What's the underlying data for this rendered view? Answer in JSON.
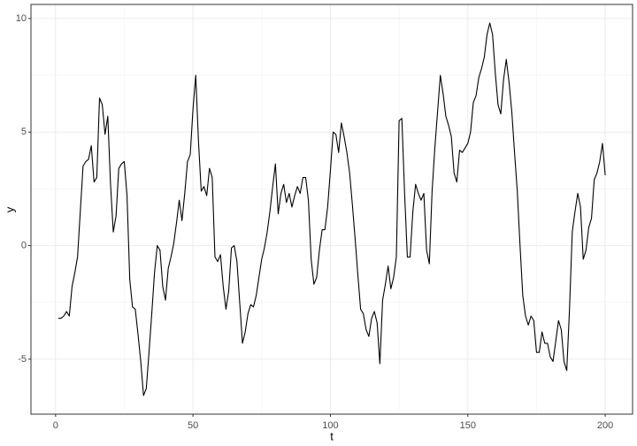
{
  "chart_data": {
    "type": "line",
    "x_label": "t",
    "y_label": "y",
    "x": [
      1,
      2,
      3,
      4,
      5,
      6,
      7,
      8,
      9,
      10,
      11,
      12,
      13,
      14,
      15,
      16,
      17,
      18,
      19,
      20,
      21,
      22,
      23,
      24,
      25,
      26,
      27,
      28,
      29,
      30,
      31,
      32,
      33,
      34,
      35,
      36,
      37,
      38,
      39,
      40,
      41,
      42,
      43,
      44,
      45,
      46,
      47,
      48,
      49,
      50,
      51,
      52,
      53,
      54,
      55,
      56,
      57,
      58,
      59,
      60,
      61,
      62,
      63,
      64,
      65,
      66,
      67,
      68,
      69,
      70,
      71,
      72,
      73,
      74,
      75,
      76,
      77,
      78,
      79,
      80,
      81,
      82,
      83,
      84,
      85,
      86,
      87,
      88,
      89,
      90,
      91,
      92,
      93,
      94,
      95,
      96,
      97,
      98,
      99,
      100,
      101,
      102,
      103,
      104,
      105,
      106,
      107,
      108,
      109,
      110,
      111,
      112,
      113,
      114,
      115,
      116,
      117,
      118,
      119,
      120,
      121,
      122,
      123,
      124,
      125,
      126,
      127,
      128,
      129,
      130,
      131,
      132,
      133,
      134,
      135,
      136,
      137,
      138,
      139,
      140,
      141,
      142,
      143,
      144,
      145,
      146,
      147,
      148,
      149,
      150,
      151,
      152,
      153,
      154,
      155,
      156,
      157,
      158,
      159,
      160,
      161,
      162,
      163,
      164,
      165,
      166,
      167,
      168,
      169,
      170,
      171,
      172,
      173,
      174,
      175,
      176,
      177,
      178,
      179,
      180,
      181,
      182,
      183,
      184,
      185,
      186,
      187,
      188,
      189,
      190,
      191,
      192,
      193,
      194,
      195,
      196,
      197,
      198,
      199,
      200
    ],
    "series": [
      {
        "color": "#000000",
        "values": [
          -3.2,
          -3.2,
          -3.1,
          -2.9,
          -3.1,
          -1.8,
          -1.2,
          -0.5,
          1.5,
          3.5,
          3.7,
          3.8,
          4.4,
          2.8,
          3.0,
          6.5,
          6.2,
          4.9,
          5.7,
          2.7,
          0.6,
          1.3,
          3.4,
          3.6,
          3.7,
          2.2,
          -1.5,
          -2.7,
          -2.8,
          -3.9,
          -5.1,
          -6.6,
          -6.3,
          -4.7,
          -3.0,
          -1.2,
          0.0,
          -0.2,
          -1.8,
          -2.4,
          -1.0,
          -0.5,
          0.1,
          1.0,
          2.0,
          1.1,
          2.3,
          3.7,
          4.0,
          6.0,
          7.5,
          4.6,
          2.4,
          2.6,
          2.2,
          3.4,
          3.0,
          -0.5,
          -0.7,
          -0.4,
          -1.8,
          -2.8,
          -2.0,
          -0.1,
          0.0,
          -0.7,
          -2.5,
          -4.3,
          -3.8,
          -3.0,
          -2.6,
          -2.7,
          -2.2,
          -1.4,
          -0.6,
          -0.1,
          0.6,
          1.5,
          2.6,
          3.6,
          1.4,
          2.3,
          2.7,
          1.9,
          2.3,
          1.7,
          2.2,
          2.6,
          2.3,
          3.0,
          3.0,
          2.0,
          -0.6,
          -1.7,
          -1.4,
          -0.2,
          0.7,
          0.7,
          1.7,
          3.3,
          5.0,
          4.9,
          4.1,
          5.4,
          4.8,
          4.1,
          3.2,
          1.8,
          0.3,
          -1.3,
          -2.8,
          -3.0,
          -3.7,
          -4.0,
          -3.2,
          -2.9,
          -3.4,
          -5.2,
          -2.4,
          -1.7,
          -0.9,
          -1.9,
          -1.4,
          -0.5,
          5.5,
          5.6,
          2.3,
          -0.5,
          -0.5,
          1.5,
          2.7,
          2.3,
          2.0,
          2.3,
          -0.2,
          -0.8,
          2.4,
          4.3,
          5.9,
          7.5,
          6.7,
          5.7,
          5.3,
          4.8,
          3.2,
          2.8,
          4.2,
          4.1,
          4.3,
          4.5,
          5.0,
          6.3,
          6.6,
          7.4,
          7.8,
          8.3,
          9.3,
          9.8,
          9.3,
          7.6,
          6.2,
          5.8,
          7.3,
          8.2,
          7.2,
          5.9,
          4.1,
          2.4,
          0.0,
          -2.2,
          -3.1,
          -3.5,
          -3.1,
          -3.3,
          -4.7,
          -4.7,
          -3.8,
          -4.3,
          -4.3,
          -4.9,
          -5.1,
          -4.2,
          -3.3,
          -3.7,
          -5.1,
          -5.5,
          -2.8,
          0.6,
          1.5,
          2.3,
          1.7,
          -0.6,
          -0.2,
          0.8,
          1.2,
          2.9,
          3.2,
          3.7,
          4.5,
          3.1
        ]
      }
    ],
    "xlim": [
      -8.95,
      209.95
    ],
    "ylim": [
      -7.42,
      10.62
    ],
    "xticks": [
      0,
      50,
      100,
      150,
      200
    ],
    "yticks": [
      -5,
      0,
      5,
      10
    ],
    "x_minor_ticks": [
      25,
      75,
      125,
      175
    ],
    "y_minor_ticks": [
      -2.5,
      2.5,
      7.5
    ],
    "grid": true
  }
}
